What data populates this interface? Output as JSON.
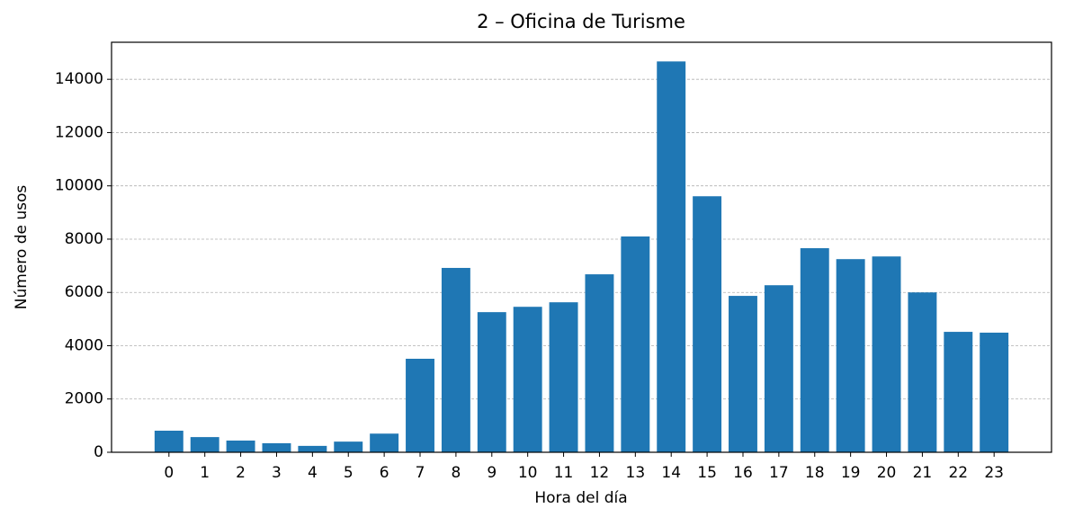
{
  "chart_data": {
    "type": "bar",
    "title": "2 – Oficina de Turisme",
    "x_label": "Hora del día",
    "y_label": "Número de usos",
    "categories": [
      "0",
      "1",
      "2",
      "3",
      "4",
      "5",
      "6",
      "7",
      "8",
      "9",
      "10",
      "11",
      "12",
      "13",
      "14",
      "15",
      "16",
      "17",
      "18",
      "19",
      "20",
      "21",
      "22",
      "23"
    ],
    "values": [
      810,
      570,
      440,
      340,
      240,
      400,
      700,
      3510,
      6920,
      5260,
      5460,
      5630,
      6680,
      8100,
      14670,
      9610,
      5870,
      6270,
      7660,
      7250,
      7350,
      6000,
      4520,
      4490
    ],
    "color": "#1f77b4",
    "ylim": [
      0,
      15390
    ],
    "yticks": [
      0,
      2000,
      4000,
      6000,
      8000,
      10000,
      12000,
      14000
    ],
    "grid": true
  }
}
